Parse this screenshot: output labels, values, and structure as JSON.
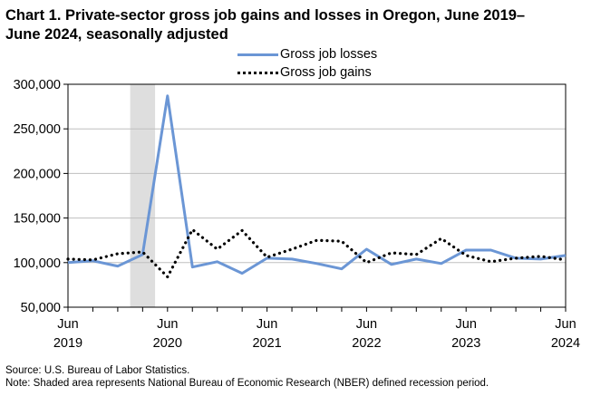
{
  "chart_data": {
    "type": "line",
    "title": "Chart 1. Private-sector gross job gains and losses in Oregon, June 2019–June 2024, seasonally adjusted",
    "xlabel": "",
    "ylabel": "",
    "ylim": [
      50000,
      300000
    ],
    "y_ticks": [
      "300,000",
      "250,000",
      "200,000",
      "150,000",
      "100,000",
      "50,000"
    ],
    "y_tick_values": [
      300000,
      250000,
      200000,
      150000,
      100000,
      50000
    ],
    "x": [
      "Jun 2019",
      "Sep 2019",
      "Dec 2019",
      "Mar 2020",
      "Jun 2020",
      "Sep 2020",
      "Dec 2020",
      "Mar 2021",
      "Jun 2021",
      "Sep 2021",
      "Dec 2021",
      "Mar 2022",
      "Jun 2022",
      "Sep 2022",
      "Dec 2022",
      "Mar 2023",
      "Jun 2023",
      "Sep 2023",
      "Dec 2023",
      "Mar 2024",
      "Jun 2024"
    ],
    "x_tick_labels": [
      {
        "month": "Jun",
        "year": "2019",
        "index": 0
      },
      {
        "month": "Jun",
        "year": "2020",
        "index": 4
      },
      {
        "month": "Jun",
        "year": "2021",
        "index": 8
      },
      {
        "month": "Jun",
        "year": "2022",
        "index": 12
      },
      {
        "month": "Jun",
        "year": "2023",
        "index": 16
      },
      {
        "month": "Jun",
        "year": "2024",
        "index": 20
      }
    ],
    "recession": {
      "start_index": 2.5,
      "end_index": 3.5
    },
    "series": [
      {
        "name": "Gross job losses",
        "color": "#6b96d5",
        "style": "solid",
        "values": [
          100000,
          102000,
          96000,
          109000,
          287000,
          95000,
          101000,
          88000,
          105000,
          104000,
          99000,
          93000,
          115000,
          98000,
          104000,
          99000,
          114000,
          114000,
          105000,
          104000,
          108000
        ]
      },
      {
        "name": "Gross job gains",
        "color": "#000000",
        "style": "dotted",
        "values": [
          104000,
          103000,
          110000,
          112000,
          84000,
          137000,
          115000,
          136000,
          106000,
          115000,
          125000,
          124000,
          100000,
          111000,
          109000,
          127000,
          108000,
          101000,
          105000,
          107000,
          103000
        ]
      }
    ],
    "legend_placement": "top-center",
    "grid": true
  },
  "notes": {
    "source": "Source: U.S. Bureau of Labor Statistics.",
    "note": "Note: Shaded area represents National Bureau of Economic Research (NBER) defined  recession period."
  }
}
